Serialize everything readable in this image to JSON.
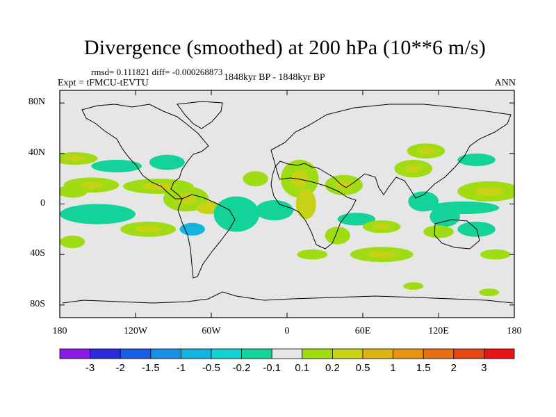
{
  "title": "Divergence (smoothed) at 200 hPa (10**6 m/s)",
  "stats": "rmsd= 0.111821  diff= -0.000268873",
  "experiment": "Expt = tFMCU-tEVTU",
  "period": "1848kyr BP - 1848kyr BP",
  "season": "ANN",
  "lat_labels": [
    {
      "text": "80N",
      "lat": 80
    },
    {
      "text": "40N",
      "lat": 40
    },
    {
      "text": "0",
      "lat": 0
    },
    {
      "text": "40S",
      "lat": -40
    },
    {
      "text": "80S",
      "lat": -80
    }
  ],
  "lon_labels": [
    {
      "text": "180",
      "lon": -180
    },
    {
      "text": "120W",
      "lon": -120
    },
    {
      "text": "60W",
      "lon": -60
    },
    {
      "text": "0",
      "lon": 0
    },
    {
      "text": "60E",
      "lon": 60
    },
    {
      "text": "120E",
      "lon": 120
    },
    {
      "text": "180",
      "lon": 180
    }
  ],
  "colorbar": {
    "colors": [
      "#8a1ae6",
      "#2b2bd9",
      "#1a5ee6",
      "#1a8fe6",
      "#14b4e0",
      "#14d2d2",
      "#14d39a",
      "#e6e6e6",
      "#a0dc14",
      "#c8d214",
      "#dcb414",
      "#e69614",
      "#e66e14",
      "#e64614",
      "#e61414"
    ],
    "labels": [
      "-3",
      "-2",
      "-1.5",
      "-1",
      "-0.5",
      "-0.2",
      "-0.1",
      "0.1",
      "0.2",
      "0.5",
      "1",
      "1.5",
      "2",
      "3"
    ]
  },
  "anomaly_regions": [
    {
      "lon": -168,
      "lat": 36,
      "rx": 18,
      "ry": 5,
      "cls": "pos1"
    },
    {
      "lon": -135,
      "lat": 30,
      "rx": 20,
      "ry": 5,
      "cls": "neg1"
    },
    {
      "lon": -95,
      "lat": 33,
      "rx": 14,
      "ry": 6,
      "cls": "neg1"
    },
    {
      "lon": -102,
      "lat": 14,
      "rx": 28,
      "ry": 6,
      "cls": "pos1"
    },
    {
      "lon": -155,
      "lat": 15,
      "rx": 22,
      "ry": 6,
      "cls": "pos1"
    },
    {
      "lon": -150,
      "lat": -8,
      "rx": 30,
      "ry": 8,
      "cls": "neg1"
    },
    {
      "lon": -80,
      "lat": 4,
      "rx": 18,
      "ry": 10,
      "cls": "pos1"
    },
    {
      "lon": -62,
      "lat": -3,
      "rx": 10,
      "ry": 5,
      "cls": "pos2"
    },
    {
      "lon": -110,
      "lat": -20,
      "rx": 22,
      "ry": 6,
      "cls": "pos1"
    },
    {
      "lon": -40,
      "lat": -8,
      "rx": 18,
      "ry": 14,
      "cls": "neg1"
    },
    {
      "lon": -75,
      "lat": -20,
      "rx": 10,
      "ry": 5,
      "cls": "neg2"
    },
    {
      "lon": -10,
      "lat": -5,
      "rx": 15,
      "ry": 8,
      "cls": "neg1"
    },
    {
      "lon": 10,
      "lat": 20,
      "rx": 15,
      "ry": 15,
      "cls": "pos1"
    },
    {
      "lon": 45,
      "lat": 15,
      "rx": 15,
      "ry": 8,
      "cls": "pos1"
    },
    {
      "lon": 15,
      "lat": 0,
      "rx": 8,
      "ry": 12,
      "cls": "pos2"
    },
    {
      "lon": 55,
      "lat": -12,
      "rx": 15,
      "ry": 5,
      "cls": "neg1"
    },
    {
      "lon": 40,
      "lat": -25,
      "rx": 10,
      "ry": 7,
      "cls": "pos1"
    },
    {
      "lon": 75,
      "lat": -18,
      "rx": 15,
      "ry": 5,
      "cls": "pos1"
    },
    {
      "lon": 75,
      "lat": -40,
      "rx": 25,
      "ry": 6,
      "cls": "pos1"
    },
    {
      "lon": 100,
      "lat": 28,
      "rx": 15,
      "ry": 7,
      "cls": "pos1"
    },
    {
      "lon": 110,
      "lat": 42,
      "rx": 15,
      "ry": 6,
      "cls": "pos1"
    },
    {
      "lon": 108,
      "lat": 2,
      "rx": 12,
      "ry": 8,
      "cls": "neg1"
    },
    {
      "lon": 125,
      "lat": -10,
      "rx": 12,
      "ry": 8,
      "cls": "neg1"
    },
    {
      "lon": 120,
      "lat": -22,
      "rx": 12,
      "ry": 5,
      "cls": "pos1"
    },
    {
      "lon": 160,
      "lat": 10,
      "rx": 25,
      "ry": 8,
      "cls": "pos1"
    },
    {
      "lon": 150,
      "lat": 35,
      "rx": 15,
      "ry": 5,
      "cls": "neg1"
    },
    {
      "lon": 140,
      "lat": -3,
      "rx": 28,
      "ry": 5,
      "cls": "neg1"
    },
    {
      "lon": 150,
      "lat": -20,
      "rx": 15,
      "ry": 6,
      "cls": "neg1"
    },
    {
      "lon": 165,
      "lat": -40,
      "rx": 12,
      "ry": 4,
      "cls": "pos1"
    },
    {
      "lon": -170,
      "lat": -30,
      "rx": 10,
      "ry": 5,
      "cls": "pos1"
    },
    {
      "lon": -170,
      "lat": 10,
      "rx": 12,
      "ry": 5,
      "cls": "pos1"
    },
    {
      "lon": -25,
      "lat": 20,
      "rx": 10,
      "ry": 6,
      "cls": "pos1"
    },
    {
      "lon": 20,
      "lat": -40,
      "rx": 12,
      "ry": 4,
      "cls": "pos1"
    },
    {
      "lon": 100,
      "lat": -65,
      "rx": 8,
      "ry": 3,
      "cls": "pos1"
    },
    {
      "lon": 160,
      "lat": -70,
      "rx": 8,
      "ry": 3,
      "cls": "pos1"
    }
  ]
}
